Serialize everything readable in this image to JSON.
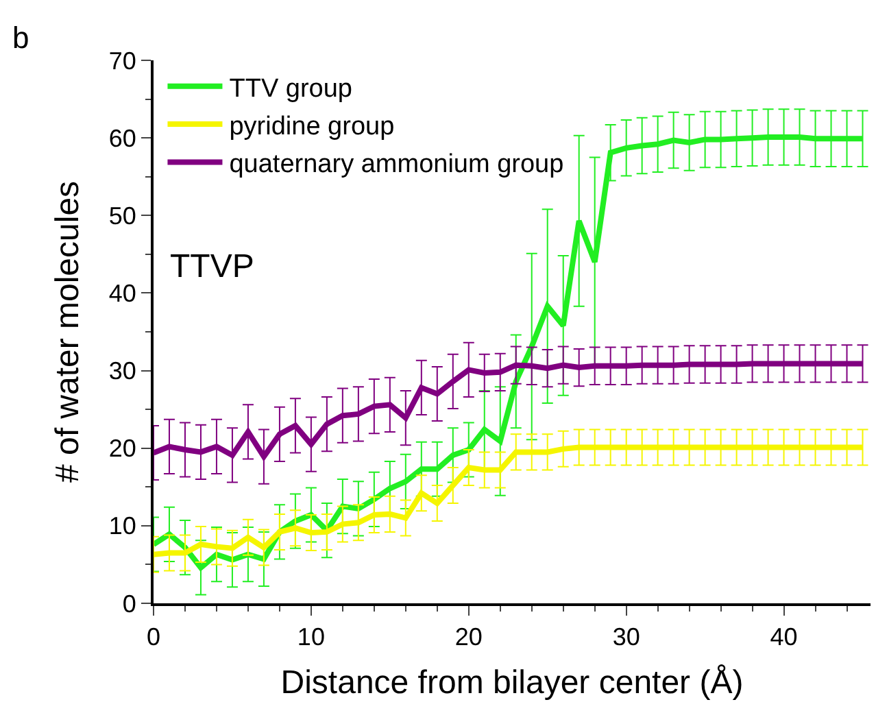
{
  "chart_data": {
    "type": "line",
    "xlabel": "Distance from bilayer center (Å)",
    "ylabel": "# of water molecules",
    "annotations": [
      "b",
      "TTVP"
    ],
    "x": [
      0,
      1,
      2,
      3,
      4,
      5,
      6,
      7,
      8,
      9,
      10,
      11,
      12,
      13,
      14,
      15,
      16,
      17,
      18,
      19,
      20,
      21,
      22,
      23,
      24,
      25,
      26,
      27,
      28,
      29,
      30,
      31,
      32,
      33,
      34,
      35,
      36,
      37,
      38,
      39,
      40,
      41,
      42,
      43,
      44,
      45
    ],
    "series": [
      {
        "name": "TTV group",
        "color": "#22ee22",
        "values": [
          7.6,
          8.9,
          7.2,
          4.6,
          6.3,
          5.6,
          6.3,
          5.7,
          9.2,
          10.6,
          11.4,
          9.4,
          12.5,
          12.2,
          13.4,
          14.8,
          15.7,
          17.3,
          17.3,
          19.1,
          19.8,
          22.4,
          20.9,
          28.6,
          33.1,
          38.3,
          35.8,
          49.3,
          44.0,
          58.1,
          58.7,
          59.0,
          59.2,
          59.7,
          59.4,
          59.8,
          59.8,
          59.9,
          60.0,
          60.1,
          60.1,
          60.1,
          59.9,
          59.9,
          59.9,
          59.9
        ],
        "errors": [
          3.5,
          3.5,
          3.5,
          3.5,
          3.5,
          3.5,
          3.5,
          3.5,
          3.5,
          3.5,
          3.5,
          3.5,
          3.5,
          3.5,
          3.5,
          3.5,
          3.5,
          3.5,
          3.5,
          3.5,
          3.5,
          5,
          7,
          6,
          12,
          12.5,
          9,
          11,
          13.5,
          3.6,
          3.6,
          3.6,
          3.6,
          3.6,
          3.6,
          3.6,
          3.6,
          3.6,
          3.6,
          3.6,
          3.6,
          3.6,
          3.6,
          3.6,
          3.6,
          3.6
        ]
      },
      {
        "name": "pyridine group",
        "color": "#f5f500",
        "values": [
          6.3,
          6.5,
          6.5,
          7.6,
          7.3,
          7.1,
          8.5,
          7.2,
          9.2,
          9.7,
          9.1,
          9.2,
          10.2,
          10.4,
          11.4,
          11.5,
          11.0,
          14.2,
          12.9,
          15.2,
          17.5,
          17.2,
          17.2,
          19.5,
          19.5,
          19.5,
          19.9,
          20.1,
          20.1,
          20.1,
          20.1,
          20.1,
          20.1,
          20.1,
          20.1,
          20.1,
          20.1,
          20.1,
          20.1,
          20.1,
          20.1,
          20.1,
          20.1,
          20.1,
          20.1,
          20.1
        ],
        "errors": [
          2.3,
          2.3,
          2.3,
          2.3,
          2.3,
          2.3,
          2.3,
          2.3,
          2.3,
          2.3,
          2.3,
          2.3,
          2.3,
          2.3,
          2.3,
          2.3,
          2.3,
          2.3,
          2.3,
          2.3,
          2.3,
          2.3,
          2.3,
          2.3,
          2.3,
          2.3,
          2.3,
          2.3,
          2.3,
          2.3,
          2.3,
          2.3,
          2.3,
          2.3,
          2.3,
          2.3,
          2.3,
          2.3,
          2.3,
          2.3,
          2.3,
          2.3,
          2.3,
          2.3,
          2.3,
          2.3
        ]
      },
      {
        "name": "quaternary ammonium group",
        "color": "#800080",
        "values": [
          19.4,
          20.2,
          19.8,
          19.5,
          20.2,
          19.1,
          22.1,
          18.9,
          21.8,
          22.9,
          20.5,
          23.1,
          24.2,
          24.4,
          25.4,
          25.6,
          23.9,
          27.8,
          27.0,
          28.6,
          30.1,
          29.7,
          29.8,
          30.7,
          30.6,
          30.3,
          30.7,
          30.4,
          30.6,
          30.6,
          30.6,
          30.7,
          30.7,
          30.7,
          30.8,
          30.8,
          30.8,
          30.8,
          30.9,
          30.9,
          30.9,
          30.9,
          30.9,
          30.9,
          30.9,
          30.9
        ],
        "errors": [
          3.5,
          3.5,
          3.5,
          3.5,
          3.5,
          3.5,
          3.5,
          3.5,
          3.5,
          3.5,
          3.5,
          3.5,
          3.5,
          3.5,
          3.5,
          3.5,
          3.5,
          3.5,
          3.5,
          3.5,
          3.5,
          2.4,
          2.4,
          2.4,
          2.4,
          2.4,
          2.4,
          2.4,
          2.4,
          2.4,
          2.4,
          2.4,
          2.4,
          2.4,
          2.4,
          2.4,
          2.4,
          2.4,
          2.4,
          2.4,
          2.4,
          2.4,
          2.4,
          2.4,
          2.4,
          2.4
        ]
      }
    ],
    "xlim": [
      0,
      45.5
    ],
    "xticks": [
      0,
      {
        "value": 2,
        "label": null
      },
      {
        "value": 4,
        "label": null
      },
      {
        "value": 6,
        "label": null
      },
      {
        "value": 8,
        "label": null
      },
      10,
      {
        "value": 12,
        "label": null
      },
      {
        "value": 14,
        "label": null
      },
      {
        "value": 16,
        "label": null
      },
      {
        "value": 18,
        "label": null
      },
      20,
      {
        "value": 22,
        "label": null
      },
      {
        "value": 24,
        "label": null
      },
      {
        "value": 26,
        "label": null
      },
      {
        "value": 28,
        "label": null
      },
      30,
      {
        "value": 32,
        "label": null
      },
      {
        "value": 34,
        "label": null
      },
      {
        "value": 36,
        "label": null
      },
      {
        "value": 38,
        "label": null
      },
      40,
      {
        "value": 42,
        "label": null
      },
      {
        "value": 44,
        "label": null
      }
    ],
    "ylim": [
      0,
      70
    ],
    "yticks": [
      0,
      {
        "value": 5,
        "label": null
      },
      10,
      {
        "value": 15,
        "label": null
      },
      20,
      {
        "value": 25,
        "label": null
      },
      30,
      {
        "value": 35,
        "label": null
      },
      40,
      {
        "value": 45,
        "label": null
      },
      50,
      {
        "value": 55,
        "label": null
      },
      60,
      {
        "value": 65,
        "label": null
      },
      70
    ],
    "legend": "top left",
    "grid": false,
    "marker": "none",
    "line_style": "solid"
  }
}
